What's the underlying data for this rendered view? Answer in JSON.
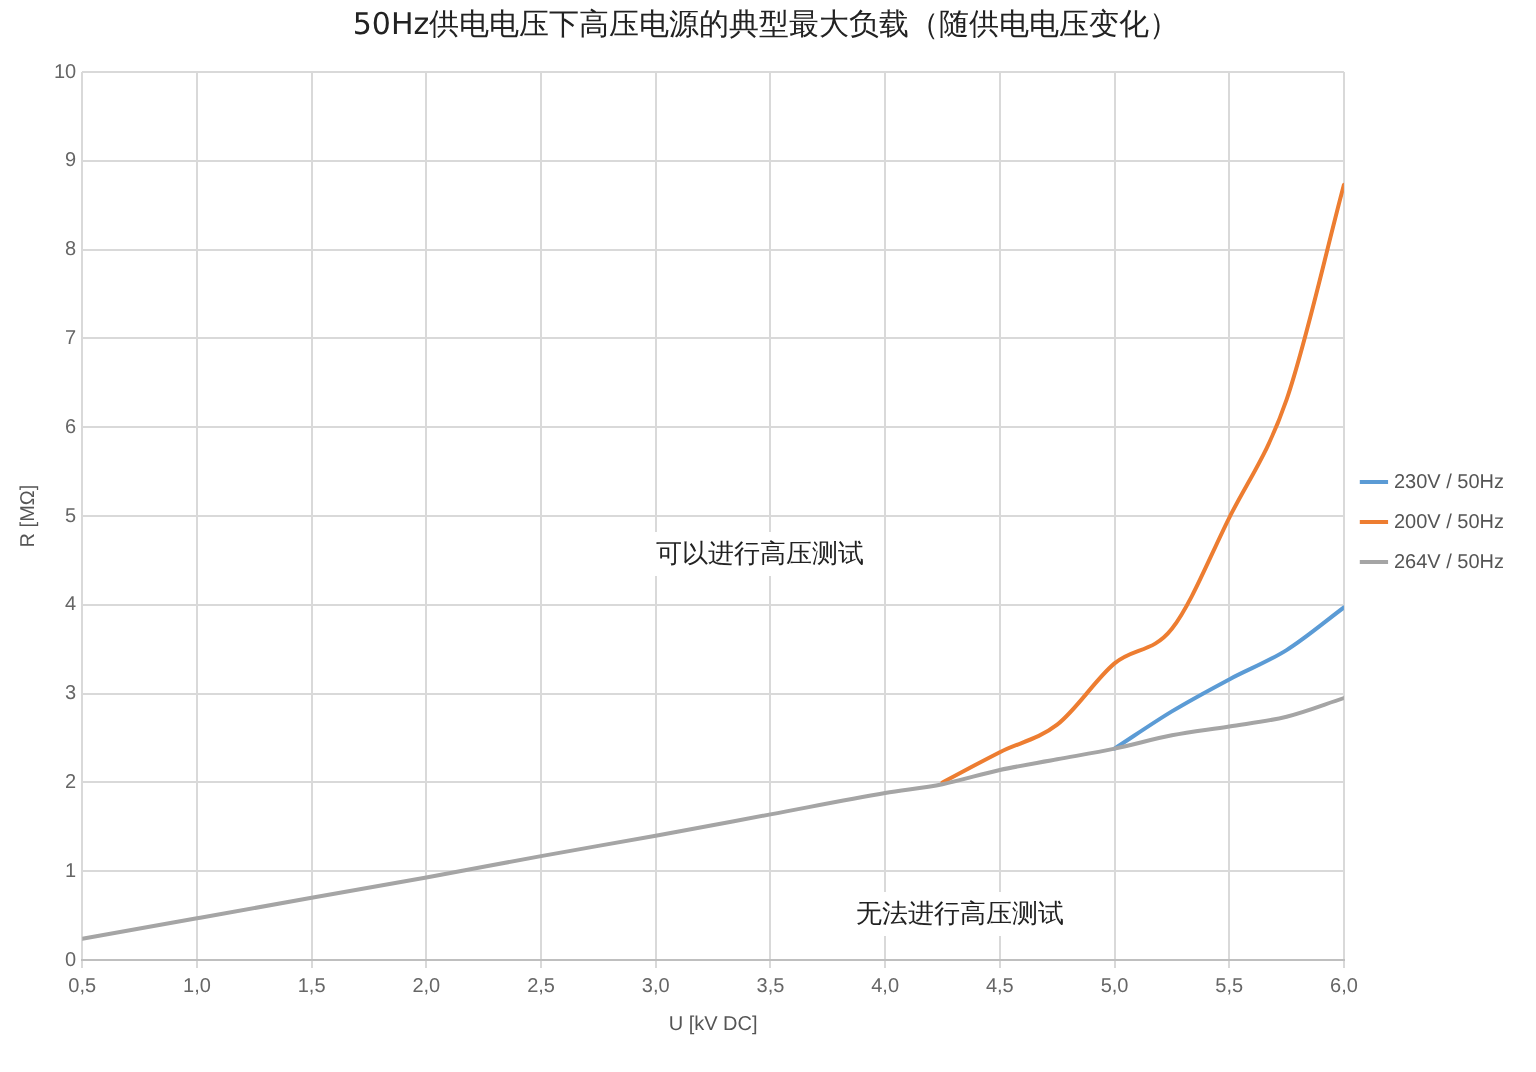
{
  "chart_data": {
    "type": "line",
    "title": "50Hz供电电压下高压电源的典型最大负载（随供电电压变化）",
    "xlabel": "U [kV DC]",
    "ylabel": "R [MΩ]",
    "x": [
      0.5,
      1.0,
      1.5,
      2.0,
      2.5,
      3.0,
      3.5,
      4.0,
      4.25,
      4.5,
      4.75,
      5.0,
      5.25,
      5.5,
      5.75,
      6.0
    ],
    "series": [
      {
        "name": "230V / 50Hz",
        "color": "#5b9bd5",
        "values": [
          null,
          null,
          null,
          null,
          null,
          null,
          null,
          null,
          null,
          null,
          null,
          2.38,
          2.8,
          3.16,
          3.49,
          3.97
        ]
      },
      {
        "name": "200V / 50Hz",
        "color": "#ed7d31",
        "values": [
          null,
          null,
          null,
          null,
          null,
          null,
          null,
          null,
          2.0,
          2.34,
          2.65,
          3.34,
          3.73,
          4.98,
          6.31,
          8.73
        ]
      },
      {
        "name": "264V / 50Hz",
        "color": "#a5a5a5",
        "values": [
          0.24,
          0.47,
          0.7,
          0.93,
          1.17,
          1.4,
          1.64,
          1.88,
          1.98,
          2.14,
          2.26,
          2.38,
          2.53,
          2.63,
          2.74,
          2.95
        ]
      }
    ],
    "xlim": [
      0.5,
      6.0
    ],
    "xticks": [
      {
        "value": 0.5,
        "label": "0,5"
      },
      {
        "value": 1.0,
        "label": "1,0"
      },
      {
        "value": 1.5,
        "label": "1,5"
      },
      {
        "value": 2.0,
        "label": "2,0"
      },
      {
        "value": 2.5,
        "label": "2,5"
      },
      {
        "value": 3.0,
        "label": "3,0"
      },
      {
        "value": 3.5,
        "label": "3,5"
      },
      {
        "value": 4.0,
        "label": "4,0"
      },
      {
        "value": 4.5,
        "label": "4,5"
      },
      {
        "value": 5.0,
        "label": "5,0"
      },
      {
        "value": 5.5,
        "label": "5,5"
      },
      {
        "value": 6.0,
        "label": "6,0"
      }
    ],
    "ylim": [
      0,
      10
    ],
    "yticks": [
      0,
      1,
      2,
      3,
      4,
      5,
      6,
      7,
      8,
      9,
      10
    ],
    "annotations": [
      "可以进行高压测试",
      "无法进行高压测试"
    ],
    "grid": true,
    "legend": "right",
    "marker": "none",
    "line_style": "solid"
  }
}
